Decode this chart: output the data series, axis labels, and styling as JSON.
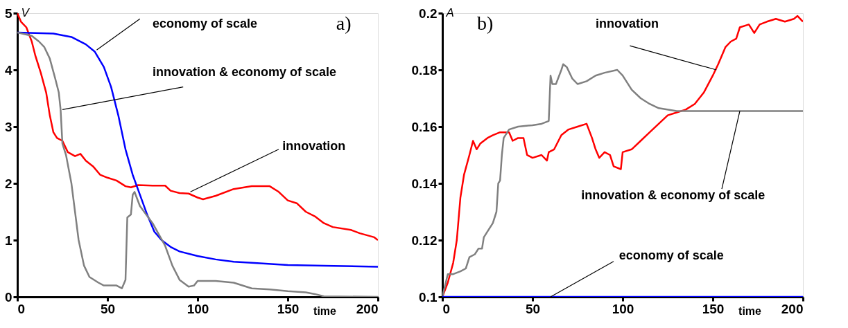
{
  "chart_data": [
    {
      "type": "line",
      "title": "a)",
      "ylabel": "V",
      "xlabel": "time",
      "xlim": [
        0,
        200
      ],
      "ylim": [
        0,
        5
      ],
      "xticks": [
        0,
        50,
        100,
        150,
        200
      ],
      "yticks": [
        0,
        1,
        2,
        3,
        4,
        5
      ],
      "grid": false,
      "series": [
        {
          "color": "#ff0000",
          "x": [
            0,
            2,
            5,
            8,
            10,
            13,
            16,
            18,
            20,
            22,
            25,
            28,
            32,
            35,
            38,
            42,
            46,
            50,
            55,
            60,
            63,
            67,
            75,
            82,
            85,
            90,
            95,
            100,
            103,
            110,
            120,
            130,
            140,
            145,
            150,
            155,
            160,
            165,
            170,
            175,
            185,
            190,
            198,
            200
          ],
          "values": [
            5.0,
            4.85,
            4.75,
            4.5,
            4.25,
            3.95,
            3.6,
            3.2,
            2.9,
            2.8,
            2.75,
            2.55,
            2.48,
            2.52,
            2.4,
            2.3,
            2.15,
            2.1,
            2.05,
            1.95,
            1.93,
            1.97,
            1.96,
            1.96,
            1.87,
            1.83,
            1.82,
            1.75,
            1.72,
            1.78,
            1.9,
            1.95,
            1.95,
            1.85,
            1.7,
            1.65,
            1.5,
            1.42,
            1.3,
            1.23,
            1.18,
            1.12,
            1.05,
            1.0
          ]
        },
        {
          "color": "#0000ff",
          "x": [
            0,
            20,
            30,
            38,
            43,
            48,
            52,
            56,
            60,
            64,
            68,
            72,
            76,
            80,
            85,
            90,
            100,
            110,
            120,
            130,
            150,
            170,
            200
          ],
          "values": [
            4.66,
            4.64,
            4.58,
            4.45,
            4.32,
            4.05,
            3.7,
            3.2,
            2.6,
            2.15,
            1.8,
            1.45,
            1.15,
            1.0,
            0.88,
            0.8,
            0.72,
            0.66,
            0.62,
            0.6,
            0.56,
            0.55,
            0.53
          ]
        },
        {
          "color": "#808080",
          "x": [
            0,
            8,
            12,
            15,
            18,
            21,
            23,
            24,
            25,
            27,
            30,
            32,
            34,
            37,
            40,
            45,
            48,
            55,
            58,
            60,
            61,
            63,
            64,
            65,
            68,
            75,
            82,
            86,
            90,
            95,
            98,
            100,
            110,
            120,
            130,
            140,
            150,
            160,
            165,
            170,
            200
          ],
          "values": [
            4.66,
            4.6,
            4.5,
            4.4,
            4.2,
            3.85,
            3.6,
            3.3,
            2.7,
            2.5,
            2.0,
            1.5,
            1.0,
            0.55,
            0.35,
            0.25,
            0.2,
            0.2,
            0.15,
            0.3,
            1.4,
            1.45,
            1.8,
            1.85,
            1.6,
            1.3,
            0.9,
            0.55,
            0.3,
            0.18,
            0.2,
            0.28,
            0.28,
            0.25,
            0.15,
            0.13,
            0.1,
            0.08,
            0.05,
            0.01,
            0.0
          ]
        }
      ],
      "annotations": [
        {
          "text": "economy of scale",
          "x": 44,
          "y": 4.35
        },
        {
          "text": "innovation & economy of scale",
          "x": 25,
          "y": 3.3
        },
        {
          "text": "innovation",
          "x": 96,
          "y": 1.85
        }
      ]
    },
    {
      "type": "line",
      "title": "b)",
      "ylabel": "A",
      "xlabel": "time",
      "xlim": [
        0,
        200
      ],
      "ylim": [
        0.1,
        0.2
      ],
      "xticks": [
        0,
        50,
        100,
        150,
        200
      ],
      "yticks": [
        0.1,
        0.12,
        0.14,
        0.16,
        0.18,
        0.2
      ],
      "grid": false,
      "series": [
        {
          "color": "#ff0000",
          "x": [
            0,
            3,
            6,
            8,
            10,
            12,
            15,
            17,
            19,
            21,
            25,
            28,
            32,
            37,
            39,
            42,
            45,
            47,
            50,
            55,
            58,
            59,
            62,
            66,
            70,
            75,
            80,
            83,
            85,
            87,
            90,
            93,
            95,
            99,
            100,
            105,
            110,
            115,
            120,
            125,
            130,
            135,
            140,
            145,
            150,
            153,
            157,
            160,
            163,
            165,
            170,
            173,
            176,
            180,
            185,
            190,
            195,
            197,
            200
          ],
          "values": [
            0.1,
            0.105,
            0.112,
            0.12,
            0.135,
            0.143,
            0.15,
            0.155,
            0.152,
            0.154,
            0.156,
            0.157,
            0.158,
            0.158,
            0.155,
            0.156,
            0.156,
            0.15,
            0.149,
            0.15,
            0.148,
            0.151,
            0.152,
            0.157,
            0.159,
            0.16,
            0.161,
            0.156,
            0.152,
            0.149,
            0.151,
            0.15,
            0.146,
            0.145,
            0.151,
            0.152,
            0.155,
            0.158,
            0.161,
            0.164,
            0.165,
            0.166,
            0.168,
            0.172,
            0.178,
            0.182,
            0.188,
            0.19,
            0.191,
            0.195,
            0.196,
            0.193,
            0.196,
            0.197,
            0.198,
            0.197,
            0.198,
            0.199,
            0.197
          ]
        },
        {
          "color": "#808080",
          "x": [
            0,
            3,
            6,
            10,
            13,
            15,
            18,
            20,
            22,
            23,
            25,
            28,
            30,
            31,
            32,
            33,
            34,
            37,
            42,
            50,
            55,
            59,
            60,
            61,
            63,
            66,
            67,
            69,
            72,
            75,
            80,
            85,
            90,
            97,
            100,
            105,
            110,
            115,
            120,
            130,
            200
          ],
          "values": [
            0.1,
            0.108,
            0.108,
            0.109,
            0.11,
            0.114,
            0.115,
            0.117,
            0.117,
            0.121,
            0.123,
            0.126,
            0.13,
            0.14,
            0.141,
            0.15,
            0.156,
            0.159,
            0.16,
            0.1605,
            0.161,
            0.162,
            0.178,
            0.175,
            0.175,
            0.18,
            0.182,
            0.181,
            0.177,
            0.175,
            0.176,
            0.178,
            0.179,
            0.18,
            0.178,
            0.173,
            0.17,
            0.168,
            0.1665,
            0.1655,
            0.1655
          ]
        },
        {
          "color": "#0000ff",
          "x": [
            0,
            200
          ],
          "values": [
            0.1,
            0.1
          ]
        }
      ],
      "annotations": [
        {
          "text": "innovation",
          "x": 152,
          "y": 0.18
        },
        {
          "text": "innovation & economy of scale",
          "x": 165,
          "y": 0.1655
        },
        {
          "text": "economy of scale",
          "x": 60,
          "y": 0.1
        }
      ]
    }
  ]
}
